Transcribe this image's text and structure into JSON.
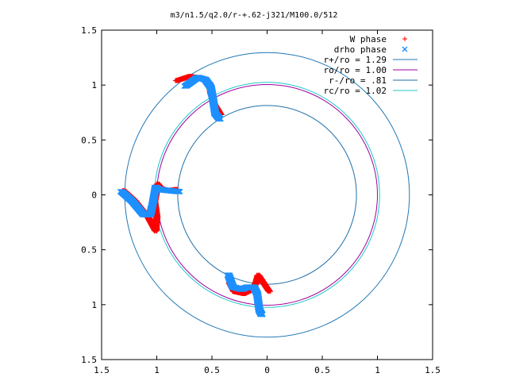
{
  "chart_data": {
    "type": "scatter",
    "title": "m3/n1.5/q2.0/r-+.62-j321/M100.0/512",
    "xlim": [
      -1.5,
      1.5
    ],
    "ylim": [
      -1.5,
      1.5
    ],
    "x_ticks": [
      -1.5,
      -1,
      -0.5,
      0,
      0.5,
      1,
      1.5
    ],
    "y_ticks": [
      -1.5,
      -1,
      -0.5,
      0,
      0.5,
      1,
      1.5
    ],
    "x_tick_labels": [
      "1.5",
      "1",
      "0.5",
      "0",
      "0.5",
      "1",
      "1.5"
    ],
    "y_tick_labels": [
      "1.5",
      "1",
      "0.5",
      "0",
      "0.5",
      "1",
      "1.5"
    ],
    "grid": false,
    "legend_position": "top-right",
    "series": [
      {
        "name": "W phase",
        "kind": "points",
        "marker": "+",
        "color": "#ff0000",
        "arms": [
          [
            [
              -1.3,
              0.04
            ],
            [
              -1.2,
              -0.05
            ],
            [
              -1.08,
              -0.2
            ],
            [
              -1.01,
              -0.33
            ],
            [
              -1.0,
              -0.2
            ],
            [
              -1.02,
              -0.06
            ],
            [
              -0.99,
              0.1
            ],
            [
              -0.96,
              0.06
            ],
            [
              -0.9,
              0.04
            ],
            [
              -0.82,
              0.05
            ]
          ],
          [
            [
              -0.82,
              1.04
            ],
            [
              -0.7,
              1.08
            ],
            [
              -0.58,
              1.06
            ],
            [
              -0.52,
              1.02
            ],
            [
              -0.51,
              0.93
            ],
            [
              -0.48,
              0.83
            ],
            [
              -0.42,
              0.73
            ]
          ],
          [
            [
              -0.34,
              -0.8
            ],
            [
              -0.3,
              -0.88
            ],
            [
              -0.21,
              -0.9
            ],
            [
              -0.13,
              -0.86
            ],
            [
              -0.1,
              -0.8
            ],
            [
              -0.08,
              -0.73
            ],
            [
              -0.02,
              -0.82
            ],
            [
              0.02,
              -0.88
            ]
          ]
        ]
      },
      {
        "name": "drho phase",
        "kind": "points",
        "marker": "x",
        "color": "#1e90ff",
        "arms": [
          [
            [
              -1.32,
              0.03
            ],
            [
              -1.22,
              -0.06
            ],
            [
              -1.12,
              -0.18
            ],
            [
              -1.06,
              -0.18
            ],
            [
              -1.04,
              -0.1
            ],
            [
              -1.01,
              0.07
            ],
            [
              -0.98,
              0.05
            ],
            [
              -0.9,
              0.04
            ],
            [
              -0.8,
              0.03
            ]
          ],
          [
            [
              -0.74,
              0.99
            ],
            [
              -0.63,
              1.07
            ],
            [
              -0.56,
              1.05
            ],
            [
              -0.51,
              0.98
            ],
            [
              -0.49,
              0.87
            ],
            [
              -0.47,
              0.74
            ],
            [
              -0.43,
              0.69
            ]
          ],
          [
            [
              -0.35,
              -0.73
            ],
            [
              -0.31,
              -0.84
            ],
            [
              -0.23,
              -0.86
            ],
            [
              -0.18,
              -0.84
            ],
            [
              -0.12,
              -0.84
            ],
            [
              -0.09,
              -0.9
            ],
            [
              -0.07,
              -1.05
            ],
            [
              -0.05,
              -1.09
            ]
          ]
        ]
      },
      {
        "name": "r+/ro = 1.29",
        "kind": "circle",
        "radius": 1.29,
        "color": "#1f77b4"
      },
      {
        "name": "ro/ro = 1.00",
        "kind": "circle",
        "radius": 1.0,
        "color": "#a000a0"
      },
      {
        "name": "r-/ro = .81",
        "kind": "circle",
        "radius": 0.81,
        "color": "#1f6fa8"
      },
      {
        "name": "rc/ro = 1.02",
        "kind": "circle",
        "radius": 1.02,
        "color": "#20c8c8"
      }
    ]
  }
}
